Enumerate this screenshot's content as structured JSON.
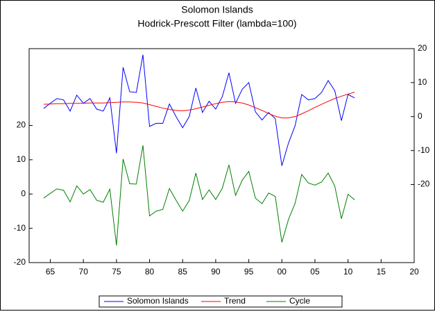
{
  "chart_data": {
    "type": "line",
    "title": "Solomon Islands",
    "subtitle": "Hodrick-Prescott Filter (lambda=100)",
    "x": [
      1964,
      1965,
      1966,
      1967,
      1968,
      1969,
      1970,
      1971,
      1972,
      1973,
      1974,
      1975,
      1976,
      1977,
      1978,
      1979,
      1980,
      1981,
      1982,
      1983,
      1984,
      1985,
      1986,
      1987,
      1988,
      1989,
      1990,
      1991,
      1992,
      1993,
      1994,
      1995,
      1996,
      1997,
      1998,
      1999,
      2000,
      2001,
      2002,
      2003,
      2004,
      2005,
      2006,
      2007,
      2008,
      2009,
      2010,
      2011
    ],
    "xlim": [
      1961.8,
      2020
    ],
    "xticks": [
      {
        "value": 1965,
        "label": "65"
      },
      {
        "value": 1970,
        "label": "70"
      },
      {
        "value": 1975,
        "label": "75"
      },
      {
        "value": 1980,
        "label": "80"
      },
      {
        "value": 1985,
        "label": "85"
      },
      {
        "value": 1990,
        "label": "90"
      },
      {
        "value": 1995,
        "label": "95"
      },
      {
        "value": 2000,
        "label": "00"
      },
      {
        "value": 2005,
        "label": "05"
      },
      {
        "value": 2010,
        "label": "10"
      },
      {
        "value": 2015,
        "label": "15"
      },
      {
        "value": 2020,
        "label": "20"
      }
    ],
    "ylim": [
      -20,
      42.4
    ],
    "yticks": [
      -20,
      -10,
      0,
      10,
      20
    ],
    "y2lim": [
      -43,
      20
    ],
    "y2ticks": [
      -20,
      -10,
      0,
      10,
      20
    ],
    "series": [
      {
        "name": "Solomon Islands",
        "color": "#0000ff",
        "axis": "y2",
        "values": [
          2.4,
          3.9,
          5.3,
          4.9,
          1.6,
          6.3,
          3.9,
          5.3,
          2.2,
          1.6,
          5.5,
          -10.8,
          14.5,
          7.3,
          7.1,
          18.2,
          -2.9,
          -2.0,
          -2.0,
          3.7,
          0,
          -3.3,
          0,
          8.4,
          1.2,
          4.5,
          2.2,
          5.9,
          12.9,
          3.9,
          8.0,
          10.0,
          1.4,
          -1.0,
          1.2,
          -0.6,
          -14.5,
          -7.8,
          -2.7,
          6.5,
          4.9,
          5.3,
          7.1,
          10.6,
          7.6,
          -1.2,
          6.5,
          5.5
        ]
      },
      {
        "name": "Trend",
        "color": "#ff0000",
        "axis": "y2",
        "values": [
          3.6,
          3.7,
          3.8,
          3.8,
          3.9,
          3.9,
          3.9,
          4.0,
          4.0,
          4.0,
          4.1,
          4.2,
          4.3,
          4.3,
          4.2,
          4.0,
          3.5,
          3.0,
          2.5,
          2.1,
          1.8,
          1.7,
          1.9,
          2.3,
          2.8,
          3.3,
          3.8,
          4.2,
          4.4,
          4.3,
          4.0,
          3.4,
          2.6,
          1.8,
          0.9,
          0.1,
          -0.4,
          -0.4,
          0.0,
          0.8,
          1.7,
          2.7,
          3.6,
          4.5,
          5.3,
          6.0,
          6.6,
          7.2
        ]
      },
      {
        "name": "Cycle",
        "color": "#008000",
        "values": [
          -1.2,
          0.2,
          1.5,
          1.1,
          -2.3,
          2.4,
          0.0,
          1.3,
          -1.8,
          -2.4,
          1.4,
          -15.0,
          10.2,
          3.0,
          2.9,
          14.2,
          -6.4,
          -5.0,
          -4.5,
          1.6,
          -1.8,
          -5.0,
          -1.9,
          6.1,
          -1.6,
          1.2,
          -1.6,
          1.7,
          8.5,
          -0.4,
          4.0,
          6.6,
          -1.2,
          -2.8,
          0.3,
          -0.7,
          -14.1,
          -7.4,
          -2.7,
          5.7,
          3.2,
          2.6,
          3.5,
          6.1,
          2.3,
          -7.2,
          -0.1,
          -1.7
        ]
      }
    ]
  }
}
